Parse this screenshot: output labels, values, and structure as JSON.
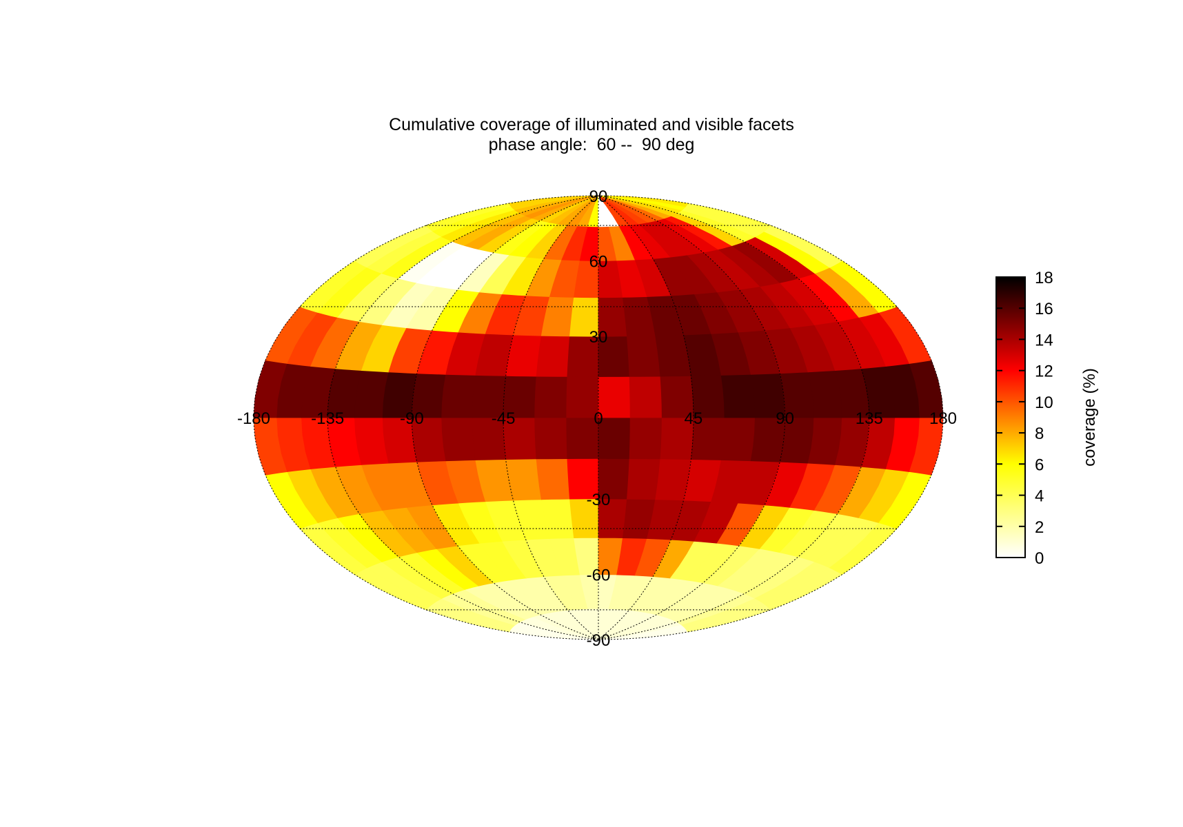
{
  "chart_data": {
    "type": "heatmap",
    "projection": "hammer-aitoff",
    "title": "Cumulative coverage of illuminated and visible facets",
    "subtitle": "phase angle:  60 --  90 deg",
    "xlabel": "",
    "ylabel": "",
    "xlim": [
      -180,
      180
    ],
    "ylim": [
      -90,
      90
    ],
    "longitude_ticks": [
      -180,
      -135,
      -90,
      -45,
      0,
      45,
      90,
      135,
      180
    ],
    "latitude_ticks": [
      90,
      60,
      30,
      -30,
      -60,
      -90
    ],
    "longitude_tick_labels": [
      "-180",
      "-135",
      "-90",
      "-45",
      "0",
      "45",
      "90",
      "135",
      "180"
    ],
    "latitude_tick_labels": [
      "90",
      "60",
      "30",
      "-30",
      "-60",
      "-90"
    ],
    "grid": true,
    "colorbar": {
      "label": "coverage (%)",
      "min": 0,
      "max": 18,
      "ticks": [
        0,
        2,
        4,
        6,
        8,
        10,
        12,
        14,
        16,
        18
      ],
      "tick_labels": [
        "0",
        "2",
        "4",
        "6",
        "8",
        "10",
        "12",
        "14",
        "16",
        "18"
      ],
      "colormap": "hot (white-yellow-red-black)"
    },
    "cell_lon_edges": [
      -180,
      -165,
      -150,
      -135,
      -120,
      -105,
      -90,
      -75,
      -60,
      -45,
      -30,
      -15,
      0,
      15,
      30,
      45,
      60,
      75,
      90,
      105,
      120,
      135,
      150,
      165,
      180
    ],
    "cell_lat_edges": [
      -90,
      -75,
      -60,
      -45,
      -30,
      -15,
      0,
      15,
      30,
      45,
      60,
      75,
      90
    ],
    "coverage_grid": [
      [
        0.5,
        0.5,
        0.5,
        0.8,
        0.8,
        1.0,
        1.0,
        1.0,
        1.0,
        1.0,
        1.0,
        1.0,
        1.0,
        1.0,
        1.0,
        1.0,
        1.0,
        1.0,
        1.0,
        1.0,
        1.0,
        0.8,
        0.5,
        0.5
      ],
      [
        3.0,
        3.0,
        2.5,
        2.5,
        2.0,
        2.0,
        2.0,
        2.0,
        2.0,
        2.5,
        2.5,
        2.0,
        1.5,
        2.0,
        2.0,
        2.0,
        2.0,
        2.0,
        2.0,
        2.0,
        2.0,
        2.5,
        3.0,
        3.0
      ],
      [
        4.0,
        4.0,
        4.5,
        5.0,
        6.0,
        7.0,
        5.0,
        5.0,
        4.5,
        4.0,
        4.0,
        3.0,
        9.0,
        11.0,
        10.0,
        8.0,
        4.0,
        4.0,
        3.5,
        3.0,
        3.0,
        3.0,
        3.5,
        3.5
      ],
      [
        4.5,
        5.0,
        6.0,
        7.5,
        8.0,
        8.5,
        6.5,
        5.5,
        5.0,
        5.0,
        5.0,
        7.0,
        14.0,
        14.5,
        14.0,
        14.0,
        13.5,
        10.0,
        7.0,
        5.0,
        4.5,
        4.0,
        4.0,
        4.5
      ],
      [
        6.0,
        7.0,
        8.0,
        8.5,
        9.0,
        9.0,
        10.0,
        9.5,
        8.5,
        8.5,
        9.5,
        12.0,
        15.0,
        14.0,
        13.5,
        13.0,
        13.5,
        13.5,
        12.5,
        11.0,
        10.0,
        8.0,
        7.0,
        6.0
      ],
      [
        10.5,
        11.0,
        11.5,
        12.0,
        12.5,
        13.0,
        14.0,
        14.5,
        14.5,
        14.0,
        14.5,
        15.0,
        15.5,
        14.5,
        14.0,
        15.0,
        15.0,
        15.5,
        15.5,
        15.0,
        14.5,
        13.5,
        12.0,
        11.0
      ],
      [
        15.0,
        15.5,
        15.5,
        16.0,
        16.0,
        16.5,
        16.0,
        15.5,
        15.5,
        15.5,
        15.0,
        14.5,
        12.5,
        13.5,
        15.0,
        16.0,
        16.5,
        16.5,
        16.0,
        16.0,
        16.0,
        16.5,
        16.5,
        16.0
      ],
      [
        10.0,
        10.5,
        9.5,
        8.0,
        7.0,
        10.5,
        11.5,
        13.0,
        13.5,
        12.5,
        13.0,
        14.5,
        15.5,
        15.0,
        15.5,
        16.0,
        15.5,
        15.0,
        14.5,
        14.0,
        13.5,
        13.0,
        12.5,
        11.0
      ],
      [
        5.0,
        5.5,
        4.0,
        3.0,
        1.5,
        2.0,
        6.0,
        9.0,
        11.0,
        10.5,
        9.0,
        7.0,
        14.5,
        15.0,
        15.5,
        15.5,
        15.0,
        14.5,
        14.0,
        13.5,
        13.0,
        12.0,
        8.0,
        6.0
      ],
      [
        4.0,
        4.5,
        5.5,
        0.3,
        0.0,
        0.0,
        1.5,
        4.0,
        6.5,
        8.5,
        10.0,
        10.5,
        13.0,
        12.5,
        13.0,
        14.5,
        14.5,
        14.0,
        13.5,
        14.0,
        14.5,
        13.0,
        6.0,
        4.0
      ],
      [
        5.0,
        5.5,
        6.5,
        7.5,
        8.0,
        7.0,
        5.5,
        6.0,
        7.0,
        9.5,
        11.0,
        12.0,
        10.0,
        9.0,
        12.0,
        12.5,
        13.0,
        13.0,
        12.5,
        11.5,
        7.0,
        5.0,
        4.5,
        4.5
      ],
      [
        7.0,
        7.0,
        7.5,
        8.0,
        8.5,
        8.0,
        7.0,
        7.5,
        8.0,
        8.5,
        8.0,
        6.0,
        0.0,
        0.0,
        10.5,
        11.0,
        10.5,
        10.0,
        9.5,
        8.0,
        7.0,
        6.5,
        6.0,
        6.5
      ]
    ]
  }
}
